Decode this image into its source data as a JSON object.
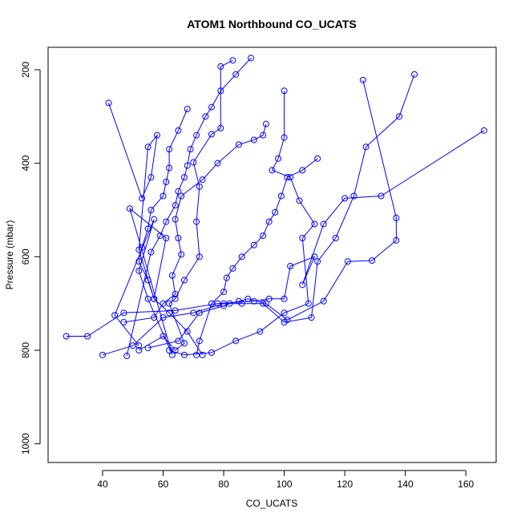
{
  "chart_data": {
    "type": "line",
    "title": "ATOM1 Northbound CO_UCATS",
    "xlabel": "CO_UCATS",
    "ylabel": "Pressure (mbar)",
    "xlim": [
      22,
      170
    ],
    "ylim": [
      1040,
      152
    ],
    "y_reversed": true,
    "grid": false,
    "legend": "none",
    "x_ticks": [
      40,
      60,
      80,
      100,
      120,
      140,
      160
    ],
    "y_ticks": [
      200,
      400,
      600,
      800,
      1000
    ],
    "line_color": "#0000ff",
    "marker": "open-circle",
    "series": [
      {
        "x": [
          42,
          53,
          56,
          58,
          55,
          52,
          57,
          61,
          49,
          63,
          55,
          52,
          57,
          44,
          52
        ],
        "y": [
          271,
          475,
          430,
          340,
          365,
          585,
          690,
          560,
          497,
          810,
          690,
          630,
          520,
          725,
          790
        ]
      },
      {
        "x": [
          166,
          132,
          120,
          113,
          106,
          110,
          102,
          100,
          95,
          90,
          78,
          64,
          47,
          35,
          28
        ],
        "y": [
          330,
          470,
          475,
          530,
          660,
          600,
          620,
          690,
          690,
          695,
          700,
          715,
          720,
          770,
          770
        ]
      },
      {
        "x": [
          143,
          138,
          127,
          123,
          117,
          111,
          109,
          100,
          93,
          86,
          80,
          70,
          60,
          50,
          40
        ],
        "y": [
          210,
          300,
          365,
          470,
          560,
          610,
          730,
          740,
          700,
          700,
          700,
          720,
          730,
          790,
          810
        ]
      },
      {
        "x": [
          126,
          137,
          137,
          129,
          121,
          113,
          101,
          94,
          88,
          85,
          82,
          80,
          72,
          65,
          55
        ],
        "y": [
          222,
          517,
          565,
          608,
          610,
          695,
          735,
          700,
          690,
          695,
          700,
          705,
          720,
          780,
          795
        ]
      },
      {
        "x": [
          100,
          100,
          98,
          96,
          102,
          105,
          110,
          106,
          108,
          100,
          92,
          84,
          76,
          67,
          62
        ],
        "y": [
          245,
          345,
          390,
          415,
          430,
          480,
          530,
          560,
          700,
          720,
          760,
          780,
          805,
          810,
          800
        ]
      },
      {
        "x": [
          83,
          79,
          79,
          76,
          70,
          72,
          71,
          72,
          67,
          64,
          62,
          67,
          64,
          60,
          52
        ],
        "y": [
          180,
          193,
          325,
          338,
          398,
          450,
          525,
          600,
          650,
          690,
          700,
          785,
          800,
          770,
          800
        ]
      },
      {
        "x": [
          94,
          93,
          90,
          85,
          78,
          73,
          66,
          64,
          65,
          66,
          63,
          64,
          60,
          57,
          47
        ],
        "y": [
          316,
          340,
          350,
          360,
          400,
          435,
          470,
          520,
          560,
          595,
          640,
          680,
          700,
          730,
          740
        ]
      },
      {
        "x": [
          111,
          106,
          101,
          99,
          97,
          95,
          93,
          90,
          86,
          83,
          81,
          80,
          76,
          72,
          71
        ],
        "y": [
          390,
          415,
          430,
          470,
          505,
          525,
          555,
          575,
          600,
          625,
          645,
          675,
          700,
          780,
          810
        ]
      },
      {
        "x": [
          89,
          84,
          79,
          76,
          74,
          71,
          69,
          68,
          67,
          65,
          64,
          61,
          59,
          56,
          48
        ],
        "y": [
          175,
          210,
          245,
          280,
          300,
          340,
          370,
          405,
          430,
          460,
          490,
          525,
          555,
          590,
          812
        ]
      },
      {
        "x": [
          68,
          65,
          62,
          62,
          61,
          60,
          56,
          55,
          53,
          52,
          55,
          57,
          62,
          68,
          73
        ],
        "y": [
          284,
          330,
          370,
          410,
          440,
          470,
          500,
          540,
          580,
          610,
          650,
          690,
          720,
          760,
          810
        ]
      }
    ]
  }
}
